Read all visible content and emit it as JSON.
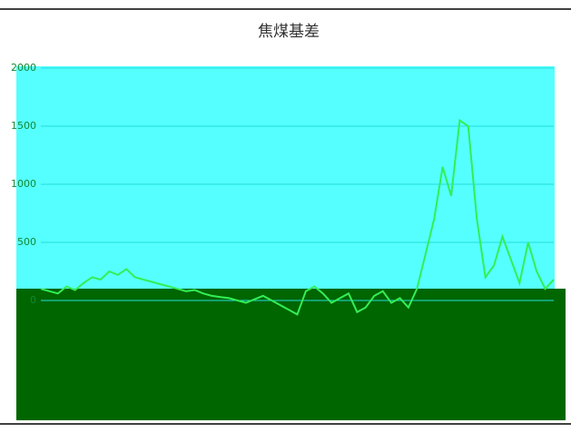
{
  "chart_data": {
    "type": "line",
    "title": "焦煤基差",
    "series": [
      {
        "name": "焦煤基差",
        "color": "#33ee55",
        "values": [
          100,
          80,
          60,
          120,
          90,
          150,
          200,
          180,
          250,
          220,
          270,
          200,
          180,
          160,
          140,
          120,
          100,
          80,
          90,
          60,
          40,
          30,
          20,
          0,
          -20,
          10,
          40,
          0,
          -40,
          -80,
          -120,
          80,
          120,
          60,
          -20,
          20,
          60,
          -100,
          -60,
          40,
          80,
          -20,
          20,
          -60,
          100,
          400,
          700,
          1150,
          900,
          1550,
          1500,
          700,
          200,
          300,
          550,
          350,
          150,
          500,
          250,
          100,
          180
        ]
      }
    ],
    "ylim": [
      -500,
      2000
    ],
    "yticks": [
      0,
      500,
      1000,
      1500,
      2000
    ],
    "grid": true
  }
}
